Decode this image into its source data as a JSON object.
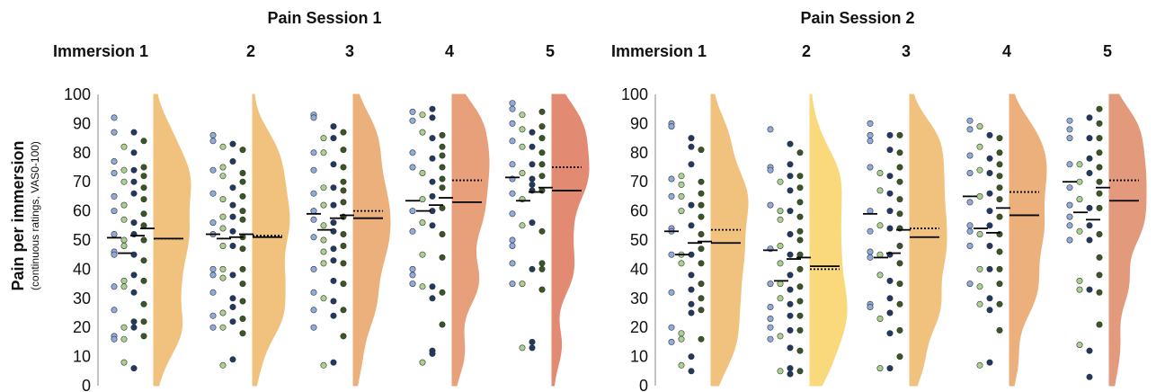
{
  "ylabel": "Pain per immersion",
  "ylabel_sub": "(continuous ratings, VAS0-100)",
  "colors": {
    "participant_light_blue": "#8faadc",
    "participant_dark_navy": "#1f3864",
    "participant_light_green": "#a9d18e",
    "participant_dark_green": "#385723",
    "mean_line": "#000000"
  },
  "chart_data": [
    {
      "type": "raincloud",
      "title": "Pain Session 1",
      "ylim": [
        0,
        100
      ],
      "yticks": [
        0,
        10,
        20,
        30,
        40,
        50,
        60,
        70,
        80,
        90,
        100
      ],
      "categories": [
        "Immersion 1",
        "2",
        "3",
        "4",
        "5"
      ],
      "cloud_colors": [
        "#f0c27d",
        "#f0c27d",
        "#ecb07c",
        "#e8a07a",
        "#e38a72"
      ],
      "dashed_median": [
        50.5,
        51.5,
        60,
        70.5,
        75
      ],
      "cloud_mean": [
        50.5,
        51,
        57.5,
        63,
        67
      ],
      "groups": [
        {
          "name": "light blue",
          "color": "#8faadc",
          "values": [
            [
              92,
              87,
              77,
              73,
              65,
              60,
              52,
              46,
              45,
              34,
              26,
              17,
              16
            ],
            [
              86,
              84,
              74,
              66,
              56,
              52,
              40,
              38,
              32,
              24,
              20
            ],
            [
              93,
              92,
              80,
              74,
              66,
              60,
              57,
              51,
              40,
              32,
              26,
              20
            ],
            [
              94,
              91,
              80,
              75,
              60,
              53,
              40,
              38,
              35
            ],
            [
              97,
              95,
              90,
              84,
              76,
              71,
              66,
              59,
              50,
              48,
              42,
              35
            ]
          ],
          "mean": [
            50.8,
            52,
            59,
            63.5,
            71.5
          ]
        },
        {
          "name": "light green",
          "color": "#a9d18e",
          "values": [
            [
              82,
              74,
              70,
              62,
              57,
              50,
              48,
              36,
              34,
              20,
              16,
              8
            ],
            [
              82,
              75,
              72,
              64,
              58,
              54,
              48,
              40,
              37,
              25,
              20,
              7
            ],
            [
              85,
              80,
              68,
              62,
              55,
              50,
              46,
              42,
              30,
              7
            ],
            [
              93,
              87,
              73,
              64,
              56,
              45,
              34,
              8
            ],
            [
              93,
              88,
              82,
              73,
              64,
              55,
              35,
              13
            ]
          ],
          "mean": [
            45.5,
            50.5,
            53.5,
            60,
            63.5
          ]
        },
        {
          "name": "dark navy",
          "color": "#1f3864",
          "values": [
            [
              87,
              80,
              74,
              70,
              66,
              56,
              52,
              45,
              38,
              32,
              22,
              20,
              6
            ],
            [
              83,
              77,
              68,
              62,
              58,
              53,
              48,
              38,
              30,
              27,
              22,
              9
            ],
            [
              89,
              85,
              76,
              68,
              62,
              56,
              53,
              47,
              43,
              36,
              29,
              24,
              8
            ],
            [
              95,
              92,
              85,
              78,
              70,
              65,
              60,
              55,
              34,
              30,
              12,
              11
            ],
            [
              87,
              82,
              76,
              71,
              69,
              67,
              56,
              40,
              15,
              13
            ]
          ],
          "mean": [
            51.5,
            51,
            57.5,
            62,
            66.5
          ]
        },
        {
          "name": "dark green",
          "color": "#385723",
          "values": [
            [
              84,
              75,
              72,
              68,
              64,
              59,
              55,
              50,
              43,
              36,
              28,
              22,
              17
            ],
            [
              81,
              73,
              70,
              65,
              60,
              57,
              51,
              47,
              40,
              35,
              29,
              23,
              18
            ],
            [
              87,
              81,
              75,
              70,
              67,
              63,
              58,
              52,
              48,
              42,
              35,
              26,
              17
            ],
            [
              86,
              82,
              79,
              75,
              71,
              68,
              61,
              52,
              44,
              32,
              21
            ],
            [
              94,
              89,
              85,
              80,
              76,
              72,
              67,
              53,
              42,
              40,
              33
            ]
          ],
          "mean": [
            54,
            52,
            58.5,
            64.5,
            68
          ]
        }
      ]
    },
    {
      "type": "raincloud",
      "title": "Pain Session 2",
      "ylim": [
        0,
        100
      ],
      "yticks": [
        0,
        10,
        20,
        30,
        40,
        50,
        60,
        70,
        80,
        90,
        100
      ],
      "categories": [
        "Immersion 1",
        "2",
        "3",
        "4",
        "5"
      ],
      "cloud_colors": [
        "#f0c27d",
        "#f9d97b",
        "#f0c27d",
        "#ecb07c",
        "#e39a7c"
      ],
      "dashed_median": [
        53.5,
        40,
        54,
        66.5,
        70.5
      ],
      "cloud_mean": [
        49,
        41,
        51,
        58.5,
        63.5
      ],
      "groups": [
        {
          "name": "light blue",
          "color": "#8faadc",
          "values": [
            [
              90,
              89,
              71,
              65,
              54,
              53,
              45,
              32,
              20,
              15
            ],
            [
              88,
              75,
              74,
              62,
              47,
              35,
              27,
              23,
              20,
              16
            ],
            [
              90,
              86,
              84,
              75,
              60,
              53,
              46,
              44,
              28,
              27
            ],
            [
              91,
              88,
              79,
              73,
              63,
              55,
              53,
              48,
              35
            ],
            [
              91,
              88,
              85,
              76,
              68,
              62,
              58,
              55,
              50
            ]
          ],
          "mean": [
            53,
            46.5,
            59,
            65,
            70
          ]
        },
        {
          "name": "light green",
          "color": "#a9d18e",
          "values": [
            [
              72,
              69,
              65,
              60,
              45,
              42,
              18,
              16,
              7
            ],
            [
              70,
              60,
              57,
              48,
              42,
              35,
              30,
              17,
              5
            ],
            [
              73,
              67,
              55,
              45,
              38,
              23,
              6
            ],
            [
              89,
              82,
              74,
              65,
              52,
              40,
              34,
              28,
              7
            ],
            [
              76,
              70,
              64,
              53,
              36,
              33,
              14
            ]
          ],
          "mean": [
            45,
            36,
            44,
            54,
            59.5
          ]
        },
        {
          "name": "dark navy",
          "color": "#1f3864",
          "values": [
            [
              85,
              82,
              76,
              62,
              55,
              45,
              38,
              33,
              28,
              25,
              10,
              5
            ],
            [
              83,
              76,
              72,
              67,
              60,
              52,
              45,
              38,
              33,
              28,
              24,
              19,
              13,
              6,
              4
            ],
            [
              86,
              81,
              72,
              66,
              60,
              54,
              45,
              36,
              30,
              25,
              18,
              6
            ],
            [
              86,
              78,
              73,
              66,
              60,
              55,
              48,
              40,
              30,
              26,
              8
            ],
            [
              92,
              85,
              78,
              73,
              61,
              55,
              50,
              33,
              12,
              3
            ]
          ],
          "mean": [
            49,
            43.5,
            45.5,
            52.5,
            57
          ]
        },
        {
          "name": "dark green",
          "color": "#385723",
          "values": [
            [
              81,
              70,
              66,
              62,
              58,
              52,
              47,
              42,
              35,
              30,
              26,
              16
            ],
            [
              80,
              72,
              68,
              63,
              58,
              53,
              50,
              45,
              40,
              34,
              29,
              24,
              19,
              12,
              5
            ],
            [
              86,
              80,
              75,
              70,
              64,
              59,
              54,
              48,
              42,
              35,
              28,
              19,
              10
            ],
            [
              85,
              80,
              76,
              72,
              68,
              64,
              58,
              52,
              46,
              40,
              35,
              28,
              19
            ],
            [
              95,
              90,
              85,
              80,
              75,
              70,
              66,
              61,
              52,
              44,
              38,
              32,
              21
            ]
          ],
          "mean": [
            49.5,
            44,
            53.5,
            61,
            68
          ]
        }
      ]
    }
  ]
}
